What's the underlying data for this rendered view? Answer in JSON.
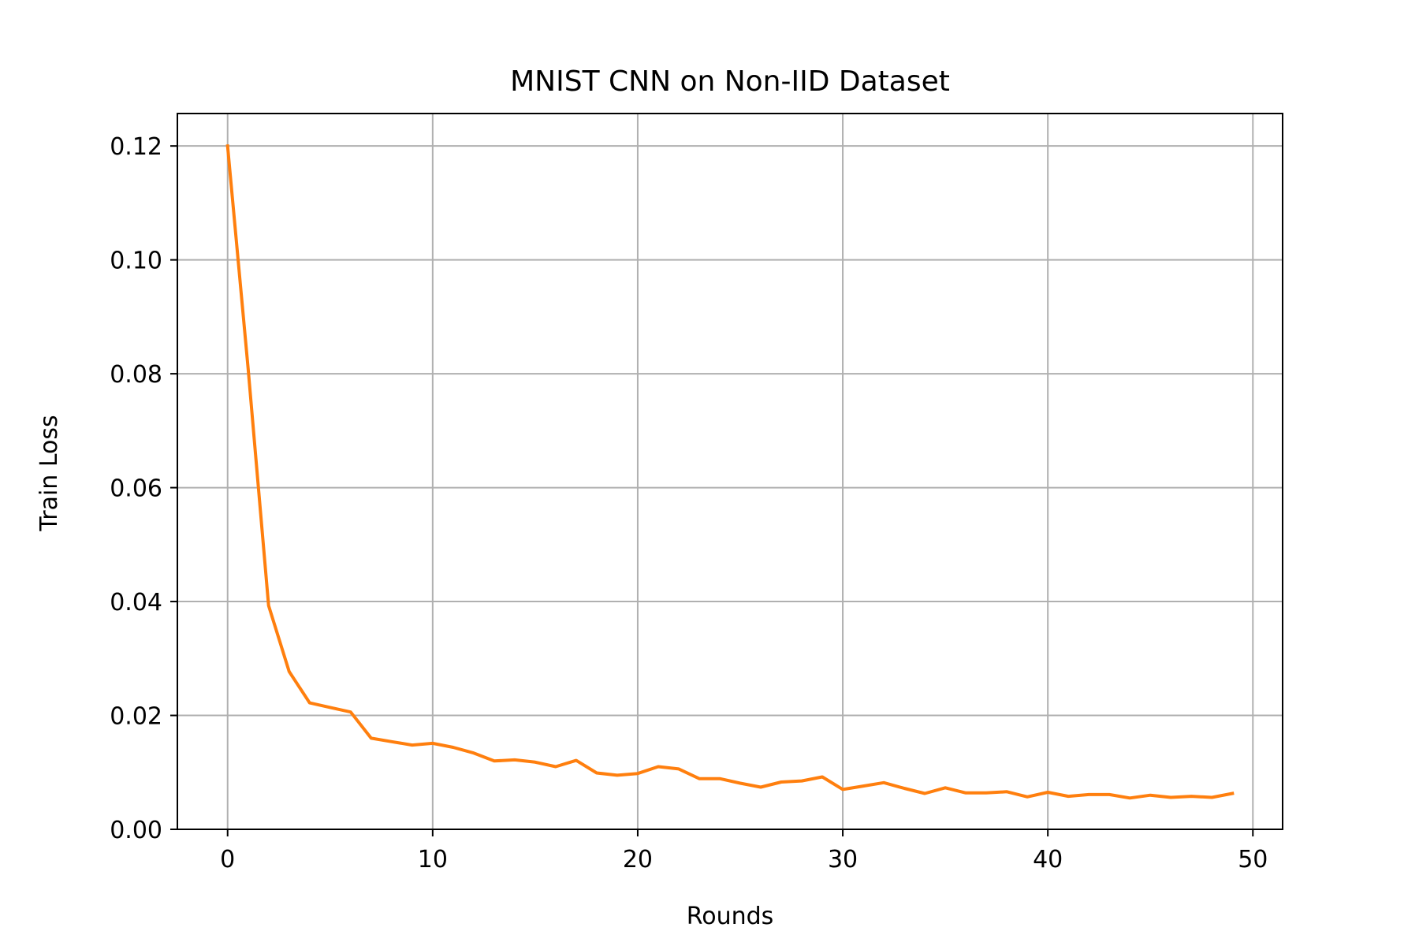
{
  "chart_data": {
    "type": "line",
    "title": "MNIST CNN on Non-IID Dataset",
    "xlabel": "Rounds",
    "ylabel": "Train Loss",
    "xlim": [
      -2.45,
      51.45
    ],
    "ylim": [
      0,
      0.1257
    ],
    "xticks": [
      0,
      10,
      20,
      30,
      40,
      50
    ],
    "yticks": [
      0.0,
      0.02,
      0.04,
      0.06,
      0.08,
      0.1,
      0.12
    ],
    "xtick_labels": [
      "0",
      "10",
      "20",
      "30",
      "40",
      "50"
    ],
    "ytick_labels": [
      "0.00",
      "0.02",
      "0.04",
      "0.06",
      "0.08",
      "0.10",
      "0.12"
    ],
    "grid": true,
    "series": [
      {
        "color": "#ff7f0e",
        "x": [
          0,
          1,
          2,
          3,
          4,
          5,
          6,
          7,
          8,
          9,
          10,
          11,
          12,
          13,
          14,
          15,
          16,
          17,
          18,
          19,
          20,
          21,
          22,
          23,
          24,
          25,
          26,
          27,
          28,
          29,
          30,
          31,
          32,
          33,
          34,
          35,
          36,
          37,
          38,
          39,
          40,
          41,
          42,
          43,
          44,
          45,
          46,
          47,
          48,
          49
        ],
        "values": [
          0.12,
          0.081,
          0.0393,
          0.0277,
          0.0222,
          0.0214,
          0.0206,
          0.016,
          0.0154,
          0.0148,
          0.0151,
          0.0144,
          0.0134,
          0.012,
          0.0122,
          0.0118,
          0.011,
          0.0121,
          0.0099,
          0.0095,
          0.0098,
          0.011,
          0.0106,
          0.0089,
          0.0089,
          0.0081,
          0.0074,
          0.0083,
          0.0085,
          0.0092,
          0.007,
          0.0076,
          0.0082,
          0.0072,
          0.0063,
          0.0073,
          0.0064,
          0.0064,
          0.0066,
          0.0057,
          0.0065,
          0.0058,
          0.0061,
          0.0061,
          0.0055,
          0.006,
          0.0056,
          0.0058,
          0.0056,
          0.0063
        ]
      }
    ]
  }
}
